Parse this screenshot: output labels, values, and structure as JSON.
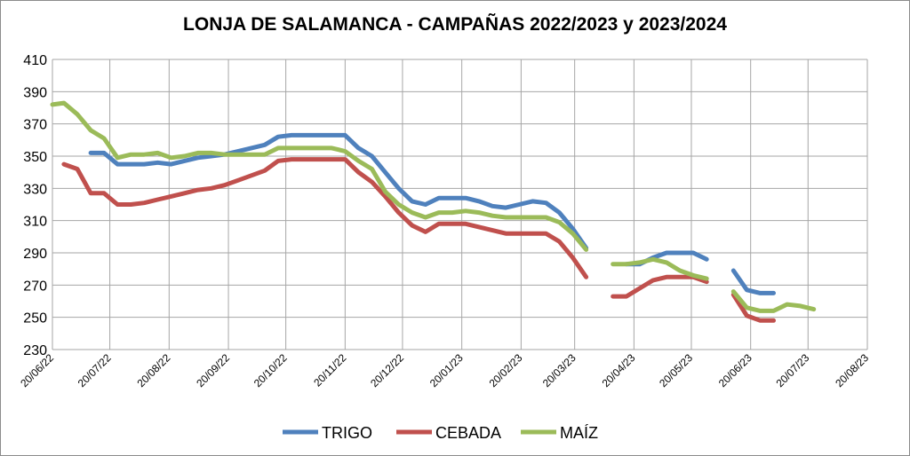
{
  "chart_data": {
    "type": "line",
    "title": "LONJA DE SALAMANCA - CAMPAÑAS 2022/2023 y 2023/2024",
    "xlabel": "",
    "ylabel": "",
    "ylim": [
      230,
      410
    ],
    "yticks": [
      230,
      250,
      270,
      290,
      310,
      330,
      350,
      370,
      390,
      410
    ],
    "xlim": [
      "20/06/22",
      "20/08/23"
    ],
    "xticks": [
      "20/06/22",
      "20/07/22",
      "20/08/22",
      "20/09/22",
      "20/10/22",
      "20/11/22",
      "20/12/22",
      "20/01/23",
      "20/02/23",
      "20/03/23",
      "20/04/23",
      "20/05/23",
      "20/06/23",
      "20/07/23",
      "20/08/23"
    ],
    "grid": true,
    "legend_position": "bottom",
    "series": [
      {
        "name": "TRIGO",
        "color": "#4f81bd",
        "points": [
          [
            "10/07/22",
            352
          ],
          [
            "17/07/22",
            352
          ],
          [
            "24/07/22",
            345
          ],
          [
            "31/07/22",
            345
          ],
          [
            "07/08/22",
            345
          ],
          [
            "14/08/22",
            346
          ],
          [
            "21/08/22",
            345
          ],
          [
            "28/08/22",
            347
          ],
          [
            "04/09/22",
            349
          ],
          [
            "11/09/22",
            350
          ],
          [
            "18/09/22",
            351
          ],
          [
            "25/09/22",
            353
          ],
          [
            "02/10/22",
            355
          ],
          [
            "09/10/22",
            357
          ],
          [
            "16/10/22",
            362
          ],
          [
            "23/10/22",
            363
          ],
          [
            "30/10/22",
            363
          ],
          [
            "06/11/22",
            363
          ],
          [
            "13/11/22",
            363
          ],
          [
            "20/11/22",
            363
          ],
          [
            "27/11/22",
            355
          ],
          [
            "04/12/22",
            350
          ],
          [
            "11/12/22",
            340
          ],
          [
            "18/12/22",
            330
          ],
          [
            "25/12/22",
            322
          ],
          [
            "01/01/23",
            320
          ],
          [
            "08/01/23",
            324
          ],
          [
            "15/01/23",
            324
          ],
          [
            "22/01/23",
            324
          ],
          [
            "29/01/23",
            322
          ],
          [
            "05/02/23",
            319
          ],
          [
            "12/02/23",
            318
          ],
          [
            "19/02/23",
            320
          ],
          [
            "26/02/23",
            322
          ],
          [
            "05/03/23",
            321
          ],
          [
            "12/03/23",
            315
          ],
          [
            "19/03/23",
            305
          ],
          [
            "26/03/23",
            293
          ],
          [
            "16/04/23",
            283
          ],
          [
            "23/04/23",
            283
          ],
          [
            "30/04/23",
            287
          ],
          [
            "07/05/23",
            290
          ],
          [
            "14/05/23",
            290
          ],
          [
            "21/05/23",
            290
          ],
          [
            "28/05/23",
            286
          ],
          [
            "11/06/23",
            279
          ],
          [
            "18/06/23",
            267
          ],
          [
            "25/06/23",
            265
          ],
          [
            "02/07/23",
            265
          ]
        ]
      },
      {
        "name": "CEBADA",
        "color": "#c0504d",
        "points": [
          [
            "26/06/22",
            345
          ],
          [
            "03/07/22",
            342
          ],
          [
            "10/07/22",
            327
          ],
          [
            "17/07/22",
            327
          ],
          [
            "24/07/22",
            320
          ],
          [
            "31/07/22",
            320
          ],
          [
            "07/08/22",
            321
          ],
          [
            "14/08/22",
            323
          ],
          [
            "21/08/22",
            325
          ],
          [
            "28/08/22",
            327
          ],
          [
            "04/09/22",
            329
          ],
          [
            "11/09/22",
            330
          ],
          [
            "18/09/22",
            332
          ],
          [
            "25/09/22",
            335
          ],
          [
            "02/10/22",
            338
          ],
          [
            "09/10/22",
            341
          ],
          [
            "16/10/22",
            347
          ],
          [
            "23/10/22",
            348
          ],
          [
            "30/10/22",
            348
          ],
          [
            "06/11/22",
            348
          ],
          [
            "13/11/22",
            348
          ],
          [
            "20/11/22",
            348
          ],
          [
            "27/11/22",
            340
          ],
          [
            "04/12/22",
            334
          ],
          [
            "11/12/22",
            325
          ],
          [
            "18/12/22",
            315
          ],
          [
            "25/12/22",
            307
          ],
          [
            "01/01/23",
            303
          ],
          [
            "08/01/23",
            308
          ],
          [
            "15/01/23",
            308
          ],
          [
            "22/01/23",
            308
          ],
          [
            "29/01/23",
            306
          ],
          [
            "05/02/23",
            304
          ],
          [
            "12/02/23",
            302
          ],
          [
            "19/02/23",
            302
          ],
          [
            "26/02/23",
            302
          ],
          [
            "05/03/23",
            302
          ],
          [
            "12/03/23",
            297
          ],
          [
            "19/03/23",
            287
          ],
          [
            "26/03/23",
            275
          ],
          [
            "09/04/23",
            263
          ],
          [
            "16/04/23",
            263
          ],
          [
            "23/04/23",
            268
          ],
          [
            "30/04/23",
            273
          ],
          [
            "07/05/23",
            275
          ],
          [
            "14/05/23",
            275
          ],
          [
            "21/05/23",
            275
          ],
          [
            "28/05/23",
            272
          ],
          [
            "11/06/23",
            264
          ],
          [
            "18/06/23",
            251
          ],
          [
            "25/06/23",
            248
          ],
          [
            "02/07/23",
            248
          ]
        ]
      },
      {
        "name": "MAÍZ",
        "color": "#9bbb59",
        "points": [
          [
            "20/06/22",
            382
          ],
          [
            "26/06/22",
            383
          ],
          [
            "03/07/22",
            376
          ],
          [
            "10/07/22",
            366
          ],
          [
            "17/07/22",
            361
          ],
          [
            "24/07/22",
            349
          ],
          [
            "31/07/22",
            351
          ],
          [
            "07/08/22",
            351
          ],
          [
            "14/08/22",
            352
          ],
          [
            "21/08/22",
            349
          ],
          [
            "28/08/22",
            350
          ],
          [
            "04/09/22",
            352
          ],
          [
            "11/09/22",
            352
          ],
          [
            "18/09/22",
            351
          ],
          [
            "25/09/22",
            351
          ],
          [
            "02/10/22",
            351
          ],
          [
            "09/10/22",
            351
          ],
          [
            "16/10/22",
            355
          ],
          [
            "23/10/22",
            355
          ],
          [
            "30/10/22",
            355
          ],
          [
            "06/11/22",
            355
          ],
          [
            "13/11/22",
            355
          ],
          [
            "20/11/22",
            353
          ],
          [
            "27/11/22",
            347
          ],
          [
            "04/12/22",
            342
          ],
          [
            "11/12/22",
            328
          ],
          [
            "18/12/22",
            320
          ],
          [
            "25/12/22",
            315
          ],
          [
            "01/01/23",
            312
          ],
          [
            "08/01/23",
            315
          ],
          [
            "15/01/23",
            315
          ],
          [
            "22/01/23",
            316
          ],
          [
            "29/01/23",
            315
          ],
          [
            "05/02/23",
            313
          ],
          [
            "12/02/23",
            312
          ],
          [
            "19/02/23",
            312
          ],
          [
            "26/02/23",
            312
          ],
          [
            "05/03/23",
            312
          ],
          [
            "12/03/23",
            309
          ],
          [
            "19/03/23",
            302
          ],
          [
            "26/03/23",
            292
          ],
          [
            "09/04/23",
            283
          ],
          [
            "16/04/23",
            283
          ],
          [
            "23/04/23",
            284
          ],
          [
            "30/04/23",
            286
          ],
          [
            "07/05/23",
            284
          ],
          [
            "14/05/23",
            279
          ],
          [
            "21/05/23",
            276
          ],
          [
            "28/05/23",
            274
          ],
          [
            "11/06/23",
            266
          ],
          [
            "18/06/23",
            256
          ],
          [
            "25/06/23",
            254
          ],
          [
            "02/07/23",
            254
          ],
          [
            "09/07/23",
            258
          ],
          [
            "16/07/23",
            257
          ],
          [
            "23/07/23",
            255
          ]
        ]
      }
    ]
  }
}
